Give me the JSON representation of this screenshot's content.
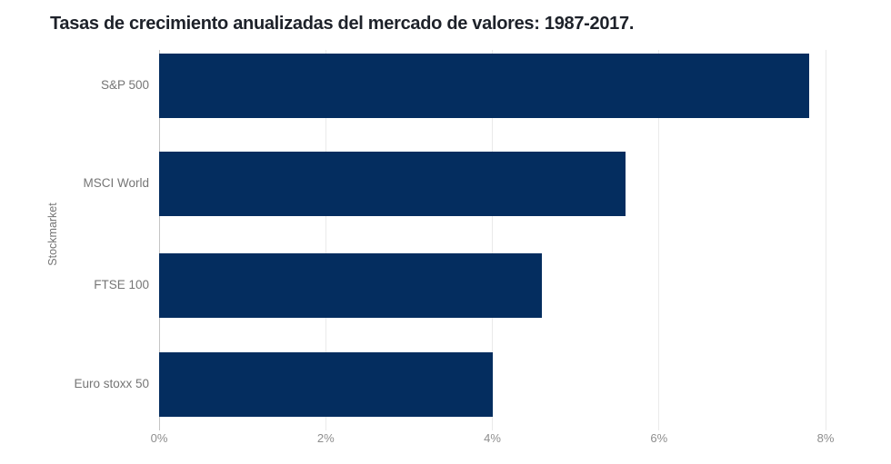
{
  "chart": {
    "title": "Tasas de crecimiento anualizadas del mercado de valores: 1987-2017.",
    "ylabel": "Stockmarket"
  },
  "chart_data": {
    "type": "bar",
    "orientation": "horizontal",
    "title": "Tasas de crecimiento anualizadas del mercado de valores: 1987-2017.",
    "xlabel": "",
    "ylabel": "Stockmarket",
    "categories": [
      "S&P 500",
      "MSCI World",
      "FTSE 100",
      "Euro stoxx 50"
    ],
    "values": [
      7.8,
      5.6,
      4.6,
      4.0
    ],
    "unit": "%",
    "xlim": [
      0,
      8
    ],
    "xticks": [
      {
        "label": "0%",
        "value": 0
      },
      {
        "label": "2%",
        "value": 2
      },
      {
        "label": "4%",
        "value": 4
      },
      {
        "label": "6%",
        "value": 6
      },
      {
        "label": "8%",
        "value": 8
      }
    ],
    "grid": "vertical",
    "legend": "none"
  },
  "colors": {
    "background": "#FFFFFF",
    "bar": "#042D5F",
    "title_text": "#1E222A",
    "category_label": "#757575",
    "tick_label": "#8E8E8E",
    "gridline": "#EAEAEA",
    "axis_line": "#C4C4C4"
  }
}
